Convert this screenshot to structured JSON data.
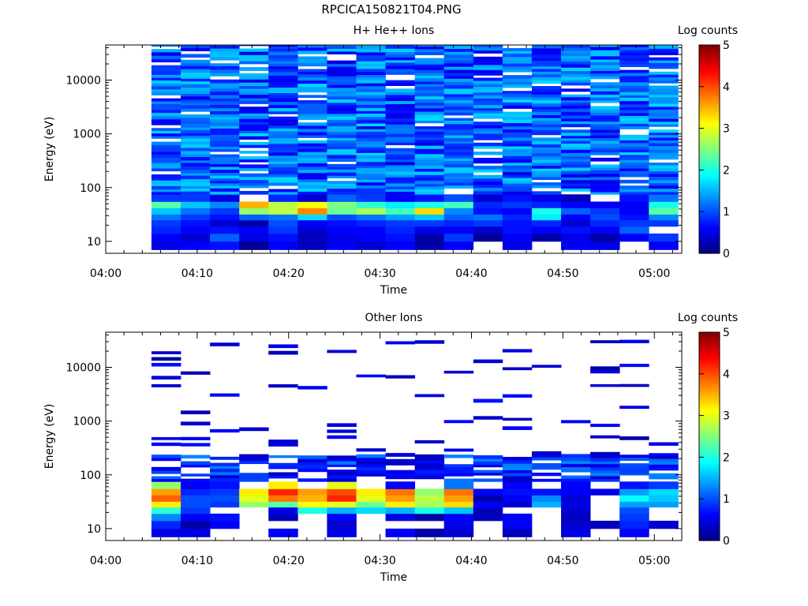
{
  "figure": {
    "title": "RPCICA150821T04.PNG"
  },
  "colorbar": {
    "label": "Log counts",
    "range": [
      0,
      5
    ],
    "ticks": [
      "0",
      "1",
      "2",
      "3",
      "4",
      "5"
    ],
    "colormap": "jet"
  },
  "chart_data": [
    {
      "type": "heatmap",
      "title": "H+ He++ Ions",
      "xlabel": "Time",
      "ylabel": "Energy (eV)",
      "yscale": "log",
      "xlim": [
        "04:00",
        "05:03"
      ],
      "ylim": [
        6,
        45000
      ],
      "x_ticks": [
        "04:00",
        "04:10",
        "04:20",
        "04:30",
        "04:40",
        "04:50",
        "05:00"
      ],
      "y_ticks": [
        "10",
        "100",
        "1000",
        "10000"
      ],
      "time_columns_start": "04:05",
      "time_column_width_min": 3.2,
      "n_time_columns": 18,
      "low_energy_rows": {
        "energy_bands_eV": [
          "7-10",
          "10-14",
          "14-19",
          "19-25",
          "25-32",
          "32-42",
          "42-55",
          "55-75"
        ],
        "values": [
          [
            0.5,
            0.6,
            0.8,
            0.9,
            1.2,
            1.6,
            2.3,
            0.9
          ],
          [
            0.6,
            0.4,
            0.6,
            0.7,
            0.9,
            1.2,
            1.6,
            0.9
          ],
          [
            0.7,
            1.1,
            0.7,
            0.4,
            0.7,
            0.9,
            1.3,
            0.5
          ],
          [
            0.1,
            0.5,
            0.6,
            0.2,
            1.1,
            2.6,
            3.5,
            0.0
          ],
          [
            0.6,
            0.7,
            0.9,
            1.0,
            1.2,
            2.8,
            2.8,
            0.8
          ],
          [
            0.3,
            0.3,
            0.4,
            0.6,
            1.7,
            3.7,
            3.1,
            0.4
          ],
          [
            0.6,
            0.5,
            0.6,
            0.7,
            1.0,
            2.4,
            2.5,
            1.1
          ],
          [
            0.4,
            0.6,
            0.6,
            0.8,
            1.2,
            2.7,
            2.1,
            0.9
          ],
          [
            0.6,
            0.7,
            0.8,
            0.9,
            1.4,
            2.2,
            1.8,
            0.6
          ],
          [
            0.2,
            0.2,
            0.5,
            0.9,
            1.6,
            3.3,
            2.0,
            0.7
          ],
          [
            0.6,
            0.9,
            0.6,
            0.8,
            1.1,
            1.3,
            2.2,
            1.0
          ],
          [
            0.0,
            0.1,
            0.4,
            0.9,
            1.2,
            0.7,
            0.8,
            0.4
          ],
          [
            0.5,
            0.6,
            0.7,
            0.7,
            0.8,
            0.6,
            0.9,
            0.7
          ],
          [
            0.0,
            0.2,
            0.6,
            0.8,
            1.8,
            2.0,
            0.8,
            0.5
          ],
          [
            0.6,
            0.5,
            0.7,
            0.4,
            0.6,
            1.1,
            0.6,
            0.3
          ],
          [
            0.5,
            0.2,
            0.6,
            0.8,
            1.0,
            0.9,
            0.6,
            0.0
          ],
          [
            0.0,
            0.6,
            1.1,
            0.9,
            0.7,
            0.6,
            0.6,
            0.7
          ],
          [
            0.6,
            0.9,
            0.0,
            0.9,
            1.3,
            2.3,
            2.0,
            1.2
          ]
        ]
      },
      "high_energy_counts_range": [
        0.5,
        1.7
      ],
      "annotations": []
    },
    {
      "type": "heatmap",
      "title": "Other Ions",
      "xlabel": "Time",
      "ylabel": "Energy (eV)",
      "yscale": "log",
      "xlim": [
        "04:00",
        "05:03"
      ],
      "ylim": [
        6,
        45000
      ],
      "x_ticks": [
        "04:00",
        "04:10",
        "04:20",
        "04:30",
        "04:40",
        "04:50",
        "05:00"
      ],
      "y_ticks": [
        "10",
        "100",
        "1000",
        "10000"
      ],
      "time_columns_start": "04:05",
      "time_column_width_min": 3.2,
      "n_time_columns": 18,
      "low_energy_rows": {
        "energy_bands_eV": [
          "7-10",
          "10-14",
          "14-19",
          "19-25",
          "25-32",
          "32-42",
          "42-55",
          "55-75"
        ],
        "values": [
          [
            0.5,
            0.8,
            1.3,
            2.1,
            3.2,
            3.9,
            3.6,
            2.6
          ],
          [
            0.5,
            0.2,
            0.6,
            0.9,
            1.0,
            1.0,
            0.8,
            0.6
          ],
          [
            0.0,
            0.6,
            0.7,
            0.0,
            0.9,
            1.0,
            0.9,
            0.7
          ],
          [
            0.0,
            0.0,
            0.0,
            0.0,
            2.6,
            3.0,
            3.2,
            0.0
          ],
          [
            0.6,
            0.0,
            0.3,
            0.5,
            2.3,
            3.8,
            4.2,
            3.2
          ],
          [
            0.0,
            0.0,
            0.0,
            2.0,
            3.1,
            3.5,
            3.6,
            0.0
          ],
          [
            0.5,
            0.4,
            0.6,
            1.5,
            3.0,
            4.2,
            4.0,
            3.0
          ],
          [
            0.0,
            0.0,
            0.0,
            1.7,
            2.4,
            3.0,
            3.2,
            0.0
          ],
          [
            0.6,
            0.0,
            0.5,
            1.5,
            3.2,
            3.6,
            3.8,
            0.6
          ],
          [
            0.2,
            0.0,
            0.2,
            2.0,
            2.7,
            2.8,
            2.6,
            0.0
          ],
          [
            0.4,
            0.5,
            0.6,
            1.6,
            3.3,
            3.6,
            3.8,
            1.2
          ],
          [
            0.0,
            0.0,
            0.3,
            0.3,
            0.6,
            0.2,
            0.6,
            0.0
          ],
          [
            0.3,
            0.6,
            0.6,
            0.0,
            0.4,
            0.6,
            0.7,
            0.6
          ],
          [
            0.0,
            0.0,
            0.0,
            0.0,
            1.5,
            1.3,
            0.7,
            0.0
          ],
          [
            0.5,
            0.4,
            0.3,
            0.4,
            0.5,
            0.4,
            0.6,
            0.6
          ],
          [
            0.0,
            0.3,
            0.0,
            0.0,
            0.0,
            0.0,
            0.5,
            0.0
          ],
          [
            0.6,
            0.8,
            0.9,
            1.0,
            1.4,
            1.9,
            1.4,
            0.7
          ],
          [
            0.0,
            0.4,
            0.0,
            0.0,
            1.4,
            1.6,
            1.7,
            0.9
          ]
        ]
      },
      "high_energy_counts_range": [
        0.3,
        0.9
      ],
      "annotations": []
    }
  ]
}
